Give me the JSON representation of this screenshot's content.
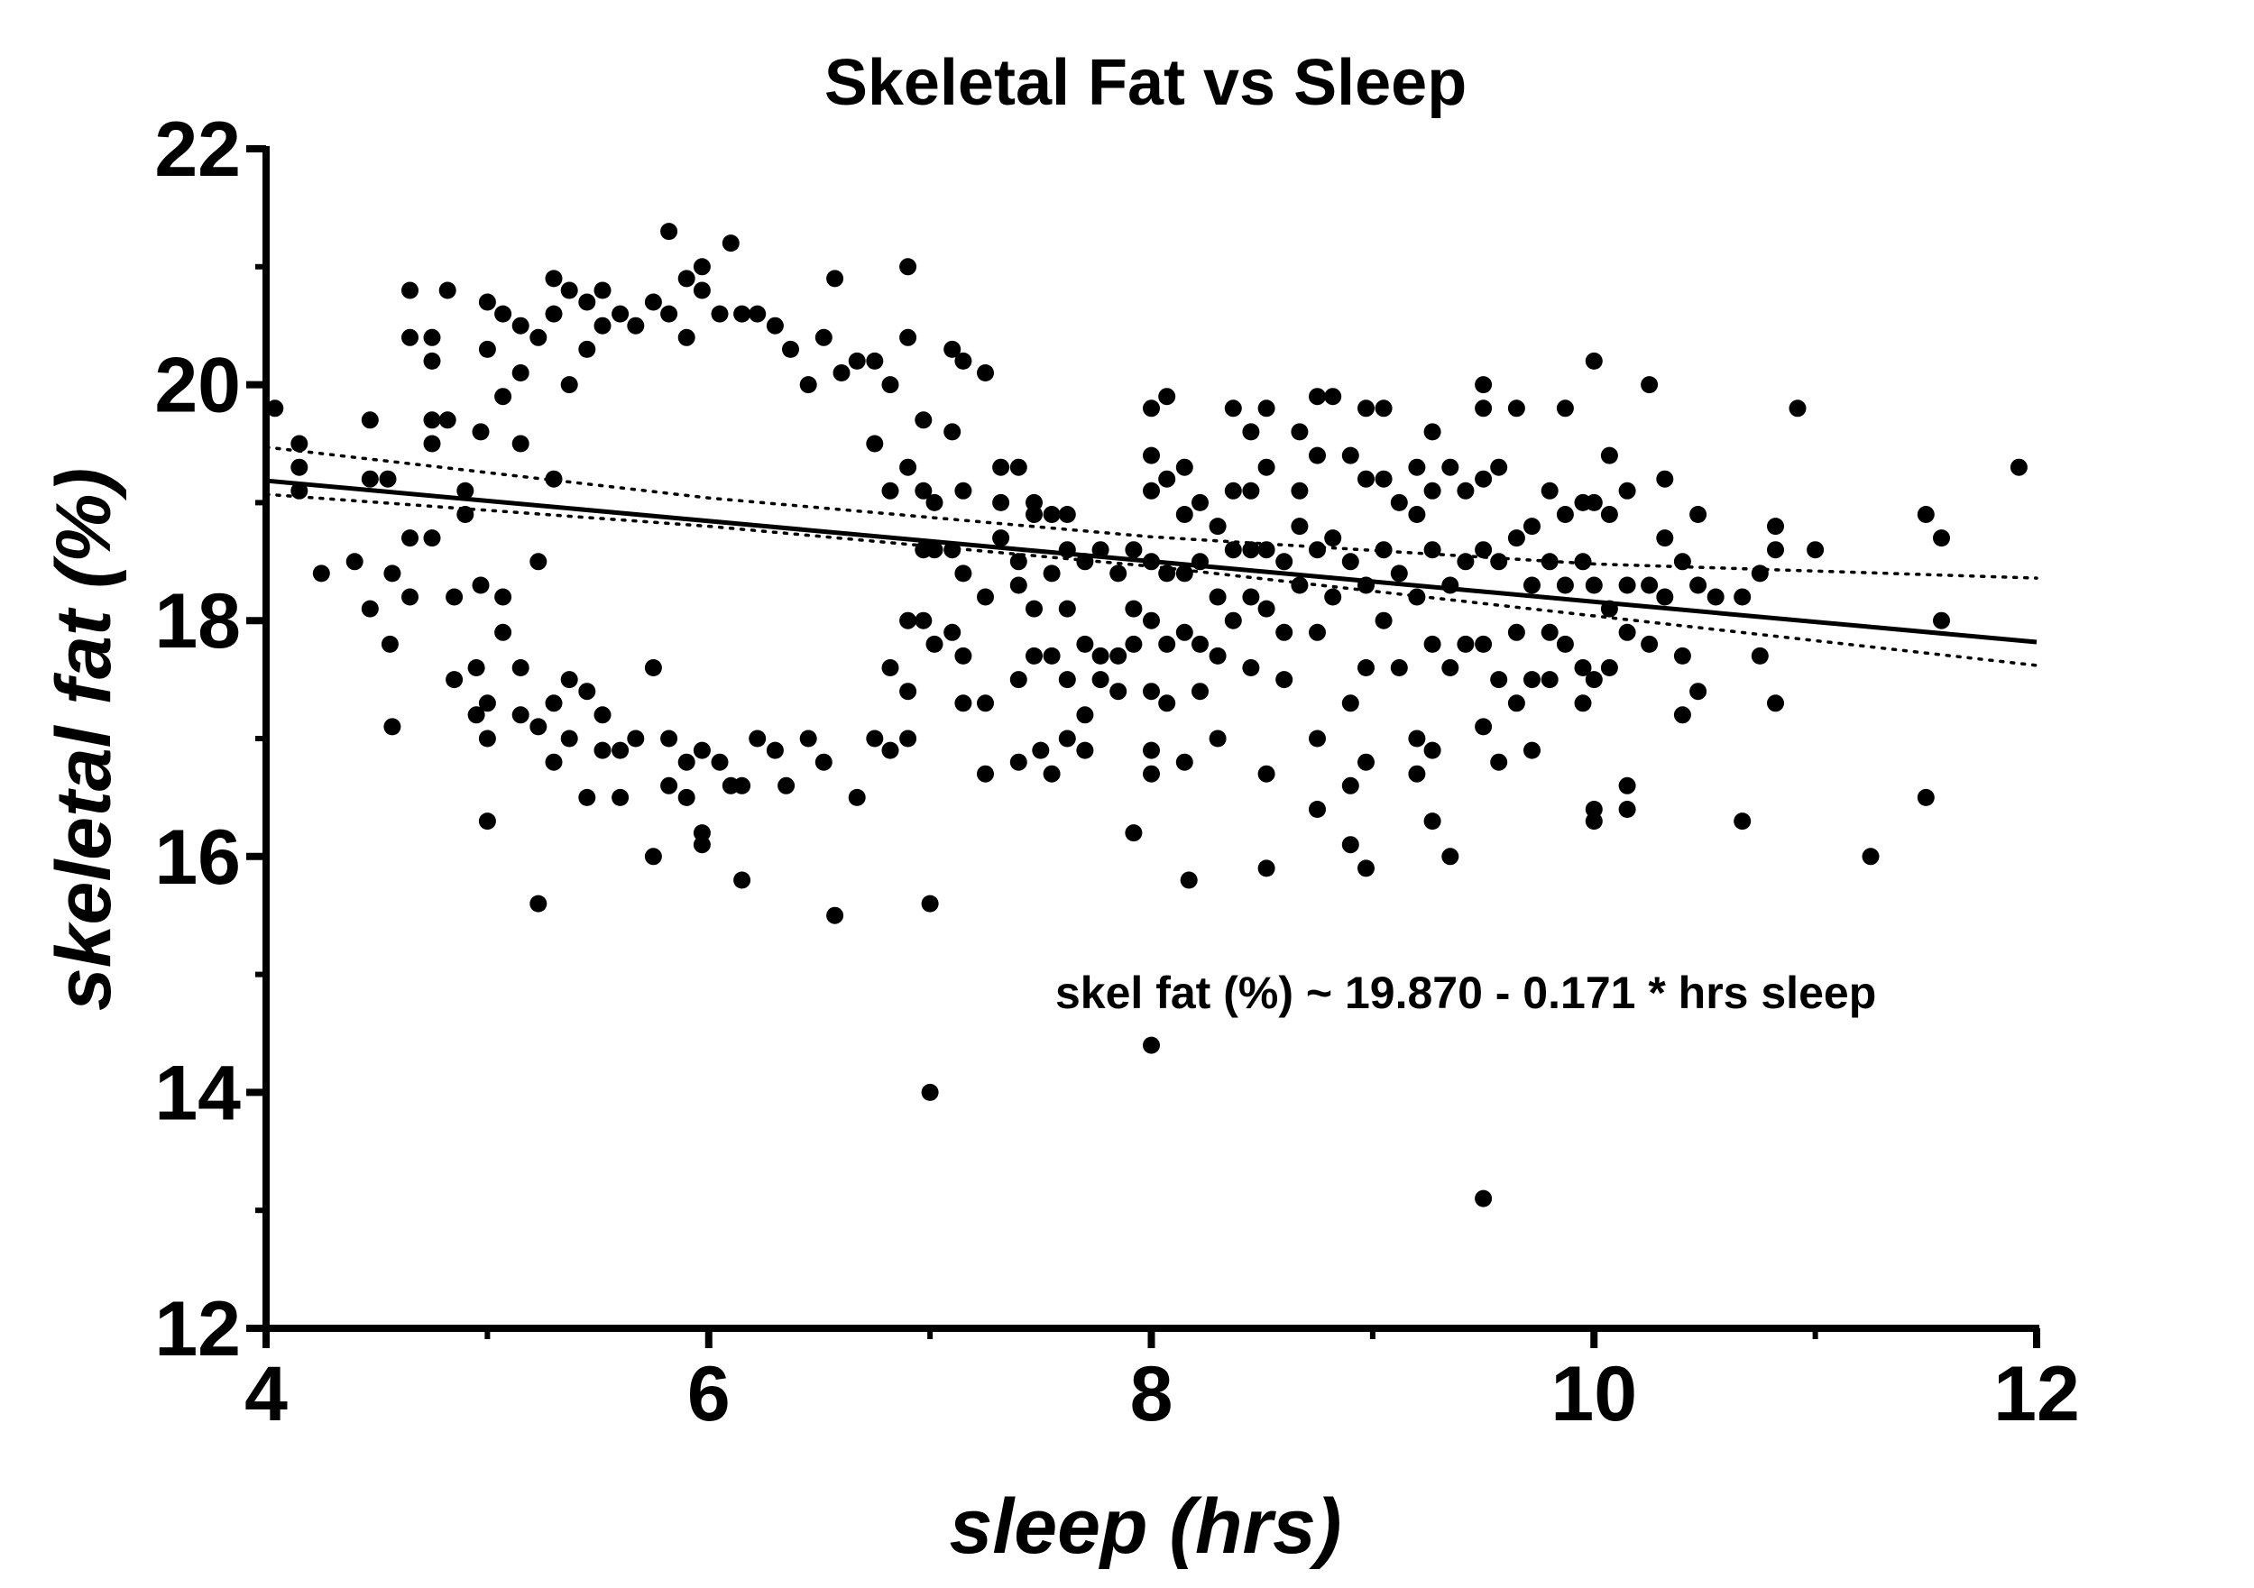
{
  "chart_data": {
    "type": "scatter",
    "title": "Skeletal Fat vs Sleep",
    "xlabel": "sleep (hrs)",
    "ylabel": "skeletal fat (%)",
    "xlim": [
      4,
      12
    ],
    "ylim": [
      12,
      22
    ],
    "xticks": [
      "4",
      "6",
      "8",
      "10",
      "12"
    ],
    "yticks": [
      "12",
      "14",
      "16",
      "18",
      "20",
      "22"
    ],
    "grid": false,
    "legend": "none",
    "annotation": "skel fat (%) ~ 19.870 - 0.171 * hrs sleep",
    "fit": {
      "intercept": 19.87,
      "slope": -0.171
    },
    "confidence_band": {
      "x": [
        4,
        6,
        8,
        10,
        12
      ],
      "upper": [
        19.47,
        19.04,
        18.71,
        18.48,
        18.36
      ],
      "lower": [
        19.07,
        18.8,
        18.46,
        18.04,
        17.62
      ]
    },
    "points": [
      [
        4.04,
        19.8
      ],
      [
        4.15,
        19.5
      ],
      [
        4.15,
        19.3
      ],
      [
        4.15,
        19.1
      ],
      [
        4.25,
        18.4
      ],
      [
        4.4,
        18.5
      ],
      [
        4.47,
        19.2
      ],
      [
        4.47,
        18.1
      ],
      [
        4.47,
        19.7
      ],
      [
        4.55,
        19.2
      ],
      [
        4.56,
        17.8
      ],
      [
        4.57,
        18.4
      ],
      [
        4.57,
        17.1
      ],
      [
        4.65,
        20.8
      ],
      [
        4.65,
        20.4
      ],
      [
        4.65,
        18.7
      ],
      [
        4.65,
        18.2
      ],
      [
        4.75,
        20.4
      ],
      [
        4.75,
        20.2
      ],
      [
        4.75,
        19.7
      ],
      [
        4.75,
        19.5
      ],
      [
        4.75,
        18.7
      ],
      [
        4.82,
        20.8
      ],
      [
        4.82,
        19.7
      ],
      [
        4.85,
        18.2
      ],
      [
        4.85,
        17.5
      ],
      [
        4.9,
        19.1
      ],
      [
        4.9,
        18.9
      ],
      [
        4.95,
        17.6
      ],
      [
        4.95,
        17.2
      ],
      [
        4.97,
        18.3
      ],
      [
        4.97,
        19.6
      ],
      [
        5.0,
        20.7
      ],
      [
        5.0,
        20.3
      ],
      [
        5.0,
        17.0
      ],
      [
        5.0,
        17.3
      ],
      [
        5.0,
        16.3
      ],
      [
        5.07,
        20.6
      ],
      [
        5.07,
        19.9
      ],
      [
        5.07,
        18.2
      ],
      [
        5.07,
        17.9
      ],
      [
        5.15,
        20.5
      ],
      [
        5.15,
        20.1
      ],
      [
        5.15,
        19.5
      ],
      [
        5.15,
        17.6
      ],
      [
        5.15,
        17.2
      ],
      [
        5.23,
        20.4
      ],
      [
        5.23,
        18.5
      ],
      [
        5.23,
        17.1
      ],
      [
        5.23,
        15.6
      ],
      [
        5.3,
        20.9
      ],
      [
        5.3,
        20.6
      ],
      [
        5.3,
        19.2
      ],
      [
        5.3,
        17.3
      ],
      [
        5.3,
        16.8
      ],
      [
        5.37,
        20.8
      ],
      [
        5.37,
        20.0
      ],
      [
        5.37,
        17.5
      ],
      [
        5.37,
        17.0
      ],
      [
        5.45,
        20.7
      ],
      [
        5.45,
        20.3
      ],
      [
        5.45,
        17.4
      ],
      [
        5.45,
        16.5
      ],
      [
        5.52,
        20.8
      ],
      [
        5.52,
        20.5
      ],
      [
        5.52,
        17.2
      ],
      [
        5.52,
        16.9
      ],
      [
        5.6,
        20.6
      ],
      [
        5.6,
        16.5
      ],
      [
        5.6,
        16.9
      ],
      [
        5.67,
        20.5
      ],
      [
        5.67,
        17.0
      ],
      [
        5.75,
        20.7
      ],
      [
        5.75,
        16.0
      ],
      [
        5.75,
        17.6
      ],
      [
        5.82,
        21.3
      ],
      [
        5.82,
        20.6
      ],
      [
        5.82,
        16.6
      ],
      [
        5.82,
        17.0
      ],
      [
        5.9,
        20.9
      ],
      [
        5.9,
        20.4
      ],
      [
        5.9,
        16.8
      ],
      [
        5.9,
        16.5
      ],
      [
        5.97,
        21.0
      ],
      [
        5.97,
        20.8
      ],
      [
        5.97,
        16.1
      ],
      [
        5.97,
        16.2
      ],
      [
        5.97,
        16.9
      ],
      [
        6.05,
        20.6
      ],
      [
        6.05,
        16.8
      ],
      [
        6.1,
        21.2
      ],
      [
        6.1,
        16.6
      ],
      [
        6.15,
        20.6
      ],
      [
        6.15,
        16.6
      ],
      [
        6.15,
        15.8
      ],
      [
        6.22,
        20.6
      ],
      [
        6.22,
        17.0
      ],
      [
        6.3,
        20.5
      ],
      [
        6.3,
        16.9
      ],
      [
        6.35,
        16.6
      ],
      [
        6.37,
        20.3
      ],
      [
        6.45,
        20.0
      ],
      [
        6.45,
        17.0
      ],
      [
        6.52,
        20.4
      ],
      [
        6.52,
        16.8
      ],
      [
        6.57,
        20.9
      ],
      [
        6.57,
        15.5
      ],
      [
        6.6,
        20.1
      ],
      [
        6.67,
        20.2
      ],
      [
        6.67,
        16.5
      ],
      [
        6.75,
        20.2
      ],
      [
        6.75,
        19.5
      ],
      [
        6.75,
        17.0
      ],
      [
        6.82,
        20.0
      ],
      [
        6.82,
        19.1
      ],
      [
        6.82,
        17.6
      ],
      [
        6.82,
        16.9
      ],
      [
        6.9,
        21.0
      ],
      [
        6.9,
        20.4
      ],
      [
        6.9,
        19.3
      ],
      [
        6.9,
        18.0
      ],
      [
        6.9,
        17.4
      ],
      [
        6.9,
        17.0
      ],
      [
        6.97,
        19.7
      ],
      [
        6.97,
        19.1
      ],
      [
        6.97,
        18.6
      ],
      [
        6.97,
        18.0
      ],
      [
        7.0,
        15.6
      ],
      [
        7.0,
        14.0
      ],
      [
        7.02,
        19.0
      ],
      [
        7.02,
        18.6
      ],
      [
        7.02,
        17.8
      ],
      [
        7.1,
        20.3
      ],
      [
        7.1,
        19.6
      ],
      [
        7.1,
        18.6
      ],
      [
        7.1,
        17.9
      ],
      [
        7.15,
        20.2
      ],
      [
        7.15,
        19.1
      ],
      [
        7.15,
        18.4
      ],
      [
        7.15,
        17.7
      ],
      [
        7.15,
        17.3
      ],
      [
        7.25,
        20.1
      ],
      [
        7.25,
        18.2
      ],
      [
        7.25,
        17.3
      ],
      [
        7.25,
        16.7
      ],
      [
        7.32,
        19.3
      ],
      [
        7.32,
        19.0
      ],
      [
        7.32,
        18.7
      ],
      [
        7.4,
        19.3
      ],
      [
        7.4,
        18.5
      ],
      [
        7.4,
        18.3
      ],
      [
        7.4,
        17.5
      ],
      [
        7.4,
        16.8
      ],
      [
        7.47,
        19.0
      ],
      [
        7.47,
        18.9
      ],
      [
        7.47,
        18.1
      ],
      [
        7.47,
        17.7
      ],
      [
        7.5,
        16.9
      ],
      [
        7.55,
        18.9
      ],
      [
        7.55,
        18.4
      ],
      [
        7.55,
        17.7
      ],
      [
        7.55,
        16.7
      ],
      [
        7.62,
        18.9
      ],
      [
        7.62,
        18.6
      ],
      [
        7.62,
        18.1
      ],
      [
        7.62,
        17.5
      ],
      [
        7.62,
        17.0
      ],
      [
        7.7,
        18.5
      ],
      [
        7.7,
        17.8
      ],
      [
        7.7,
        17.2
      ],
      [
        7.7,
        16.9
      ],
      [
        7.77,
        18.6
      ],
      [
        7.77,
        17.7
      ],
      [
        7.77,
        17.5
      ],
      [
        7.85,
        18.4
      ],
      [
        7.85,
        17.7
      ],
      [
        7.85,
        17.4
      ],
      [
        7.92,
        18.6
      ],
      [
        7.92,
        18.1
      ],
      [
        7.92,
        17.8
      ],
      [
        7.92,
        16.2
      ],
      [
        8.0,
        19.8
      ],
      [
        8.0,
        19.4
      ],
      [
        8.0,
        19.1
      ],
      [
        8.0,
        18.5
      ],
      [
        8.0,
        18.0
      ],
      [
        8.0,
        17.4
      ],
      [
        8.0,
        16.9
      ],
      [
        8.0,
        16.7
      ],
      [
        8.0,
        14.4
      ],
      [
        8.07,
        19.9
      ],
      [
        8.07,
        19.2
      ],
      [
        8.07,
        18.4
      ],
      [
        8.07,
        17.8
      ],
      [
        8.07,
        17.3
      ],
      [
        8.15,
        19.3
      ],
      [
        8.15,
        18.9
      ],
      [
        8.15,
        18.4
      ],
      [
        8.15,
        17.9
      ],
      [
        8.15,
        16.8
      ],
      [
        8.17,
        15.8
      ],
      [
        8.22,
        19.0
      ],
      [
        8.22,
        18.5
      ],
      [
        8.22,
        17.8
      ],
      [
        8.22,
        17.4
      ],
      [
        8.3,
        18.8
      ],
      [
        8.3,
        18.2
      ],
      [
        8.3,
        17.7
      ],
      [
        8.3,
        17.0
      ],
      [
        8.37,
        19.8
      ],
      [
        8.37,
        19.1
      ],
      [
        8.37,
        18.6
      ],
      [
        8.37,
        18.0
      ],
      [
        8.45,
        19.6
      ],
      [
        8.45,
        19.1
      ],
      [
        8.45,
        18.6
      ],
      [
        8.45,
        18.2
      ],
      [
        8.45,
        17.6
      ],
      [
        8.52,
        19.8
      ],
      [
        8.52,
        19.3
      ],
      [
        8.52,
        18.6
      ],
      [
        8.52,
        18.1
      ],
      [
        8.52,
        16.7
      ],
      [
        8.52,
        15.9
      ],
      [
        8.6,
        18.5
      ],
      [
        8.6,
        17.9
      ],
      [
        8.6,
        17.5
      ],
      [
        8.67,
        19.6
      ],
      [
        8.67,
        19.1
      ],
      [
        8.67,
        18.8
      ],
      [
        8.67,
        18.3
      ],
      [
        8.75,
        19.9
      ],
      [
        8.75,
        19.4
      ],
      [
        8.75,
        18.6
      ],
      [
        8.75,
        17.9
      ],
      [
        8.75,
        16.4
      ],
      [
        8.75,
        17.0
      ],
      [
        8.82,
        19.9
      ],
      [
        8.82,
        18.7
      ],
      [
        8.82,
        18.2
      ],
      [
        8.9,
        19.4
      ],
      [
        8.9,
        18.5
      ],
      [
        8.9,
        17.3
      ],
      [
        8.9,
        16.6
      ],
      [
        8.9,
        16.1
      ],
      [
        8.97,
        19.8
      ],
      [
        8.97,
        19.2
      ],
      [
        8.97,
        18.3
      ],
      [
        8.97,
        17.6
      ],
      [
        8.97,
        16.8
      ],
      [
        8.97,
        15.9
      ],
      [
        9.05,
        19.8
      ],
      [
        9.05,
        19.2
      ],
      [
        9.05,
        18.6
      ],
      [
        9.05,
        18.0
      ],
      [
        9.12,
        19.0
      ],
      [
        9.12,
        18.4
      ],
      [
        9.12,
        17.6
      ],
      [
        9.2,
        19.3
      ],
      [
        9.2,
        18.9
      ],
      [
        9.2,
        18.2
      ],
      [
        9.2,
        17.0
      ],
      [
        9.2,
        16.7
      ],
      [
        9.27,
        19.6
      ],
      [
        9.27,
        19.1
      ],
      [
        9.27,
        18.6
      ],
      [
        9.27,
        17.8
      ],
      [
        9.27,
        16.9
      ],
      [
        9.27,
        16.3
      ],
      [
        9.35,
        19.3
      ],
      [
        9.35,
        18.3
      ],
      [
        9.35,
        17.6
      ],
      [
        9.35,
        16.0
      ],
      [
        9.42,
        19.1
      ],
      [
        9.42,
        18.5
      ],
      [
        9.42,
        17.8
      ],
      [
        9.5,
        20.0
      ],
      [
        9.5,
        19.8
      ],
      [
        9.5,
        19.2
      ],
      [
        9.5,
        18.6
      ],
      [
        9.5,
        17.8
      ],
      [
        9.5,
        17.1
      ],
      [
        9.5,
        13.1
      ],
      [
        9.57,
        19.3
      ],
      [
        9.57,
        18.5
      ],
      [
        9.57,
        17.5
      ],
      [
        9.57,
        16.8
      ],
      [
        9.65,
        19.8
      ],
      [
        9.65,
        18.7
      ],
      [
        9.65,
        17.9
      ],
      [
        9.65,
        17.3
      ],
      [
        9.72,
        18.8
      ],
      [
        9.72,
        18.3
      ],
      [
        9.72,
        17.5
      ],
      [
        9.72,
        16.9
      ],
      [
        9.8,
        19.1
      ],
      [
        9.8,
        18.5
      ],
      [
        9.8,
        17.9
      ],
      [
        9.8,
        17.5
      ],
      [
        9.87,
        19.8
      ],
      [
        9.87,
        18.9
      ],
      [
        9.87,
        18.3
      ],
      [
        9.87,
        17.8
      ],
      [
        9.95,
        19.0
      ],
      [
        9.95,
        18.5
      ],
      [
        9.95,
        17.6
      ],
      [
        9.95,
        17.3
      ],
      [
        10.0,
        20.2
      ],
      [
        10.0,
        19.0
      ],
      [
        10.0,
        18.3
      ],
      [
        10.0,
        17.5
      ],
      [
        10.0,
        16.3
      ],
      [
        10.0,
        16.4
      ],
      [
        10.07,
        19.4
      ],
      [
        10.07,
        18.9
      ],
      [
        10.07,
        18.1
      ],
      [
        10.07,
        17.6
      ],
      [
        10.15,
        19.1
      ],
      [
        10.15,
        18.3
      ],
      [
        10.15,
        17.9
      ],
      [
        10.15,
        16.6
      ],
      [
        10.15,
        16.4
      ],
      [
        10.25,
        20.0
      ],
      [
        10.25,
        18.3
      ],
      [
        10.25,
        17.8
      ],
      [
        10.32,
        19.2
      ],
      [
        10.32,
        18.7
      ],
      [
        10.32,
        18.2
      ],
      [
        10.4,
        18.5
      ],
      [
        10.4,
        17.7
      ],
      [
        10.4,
        17.2
      ],
      [
        10.47,
        18.9
      ],
      [
        10.47,
        18.3
      ],
      [
        10.47,
        17.4
      ],
      [
        10.55,
        18.2
      ],
      [
        10.67,
        18.2
      ],
      [
        10.67,
        16.3
      ],
      [
        10.75,
        18.4
      ],
      [
        10.75,
        17.7
      ],
      [
        10.82,
        18.8
      ],
      [
        10.82,
        18.6
      ],
      [
        10.82,
        17.3
      ],
      [
        10.92,
        19.8
      ],
      [
        11.0,
        18.6
      ],
      [
        11.25,
        16.0
      ],
      [
        11.5,
        18.9
      ],
      [
        11.5,
        16.5
      ],
      [
        11.57,
        18.7
      ],
      [
        11.57,
        18.0
      ],
      [
        11.92,
        19.3
      ]
    ]
  }
}
